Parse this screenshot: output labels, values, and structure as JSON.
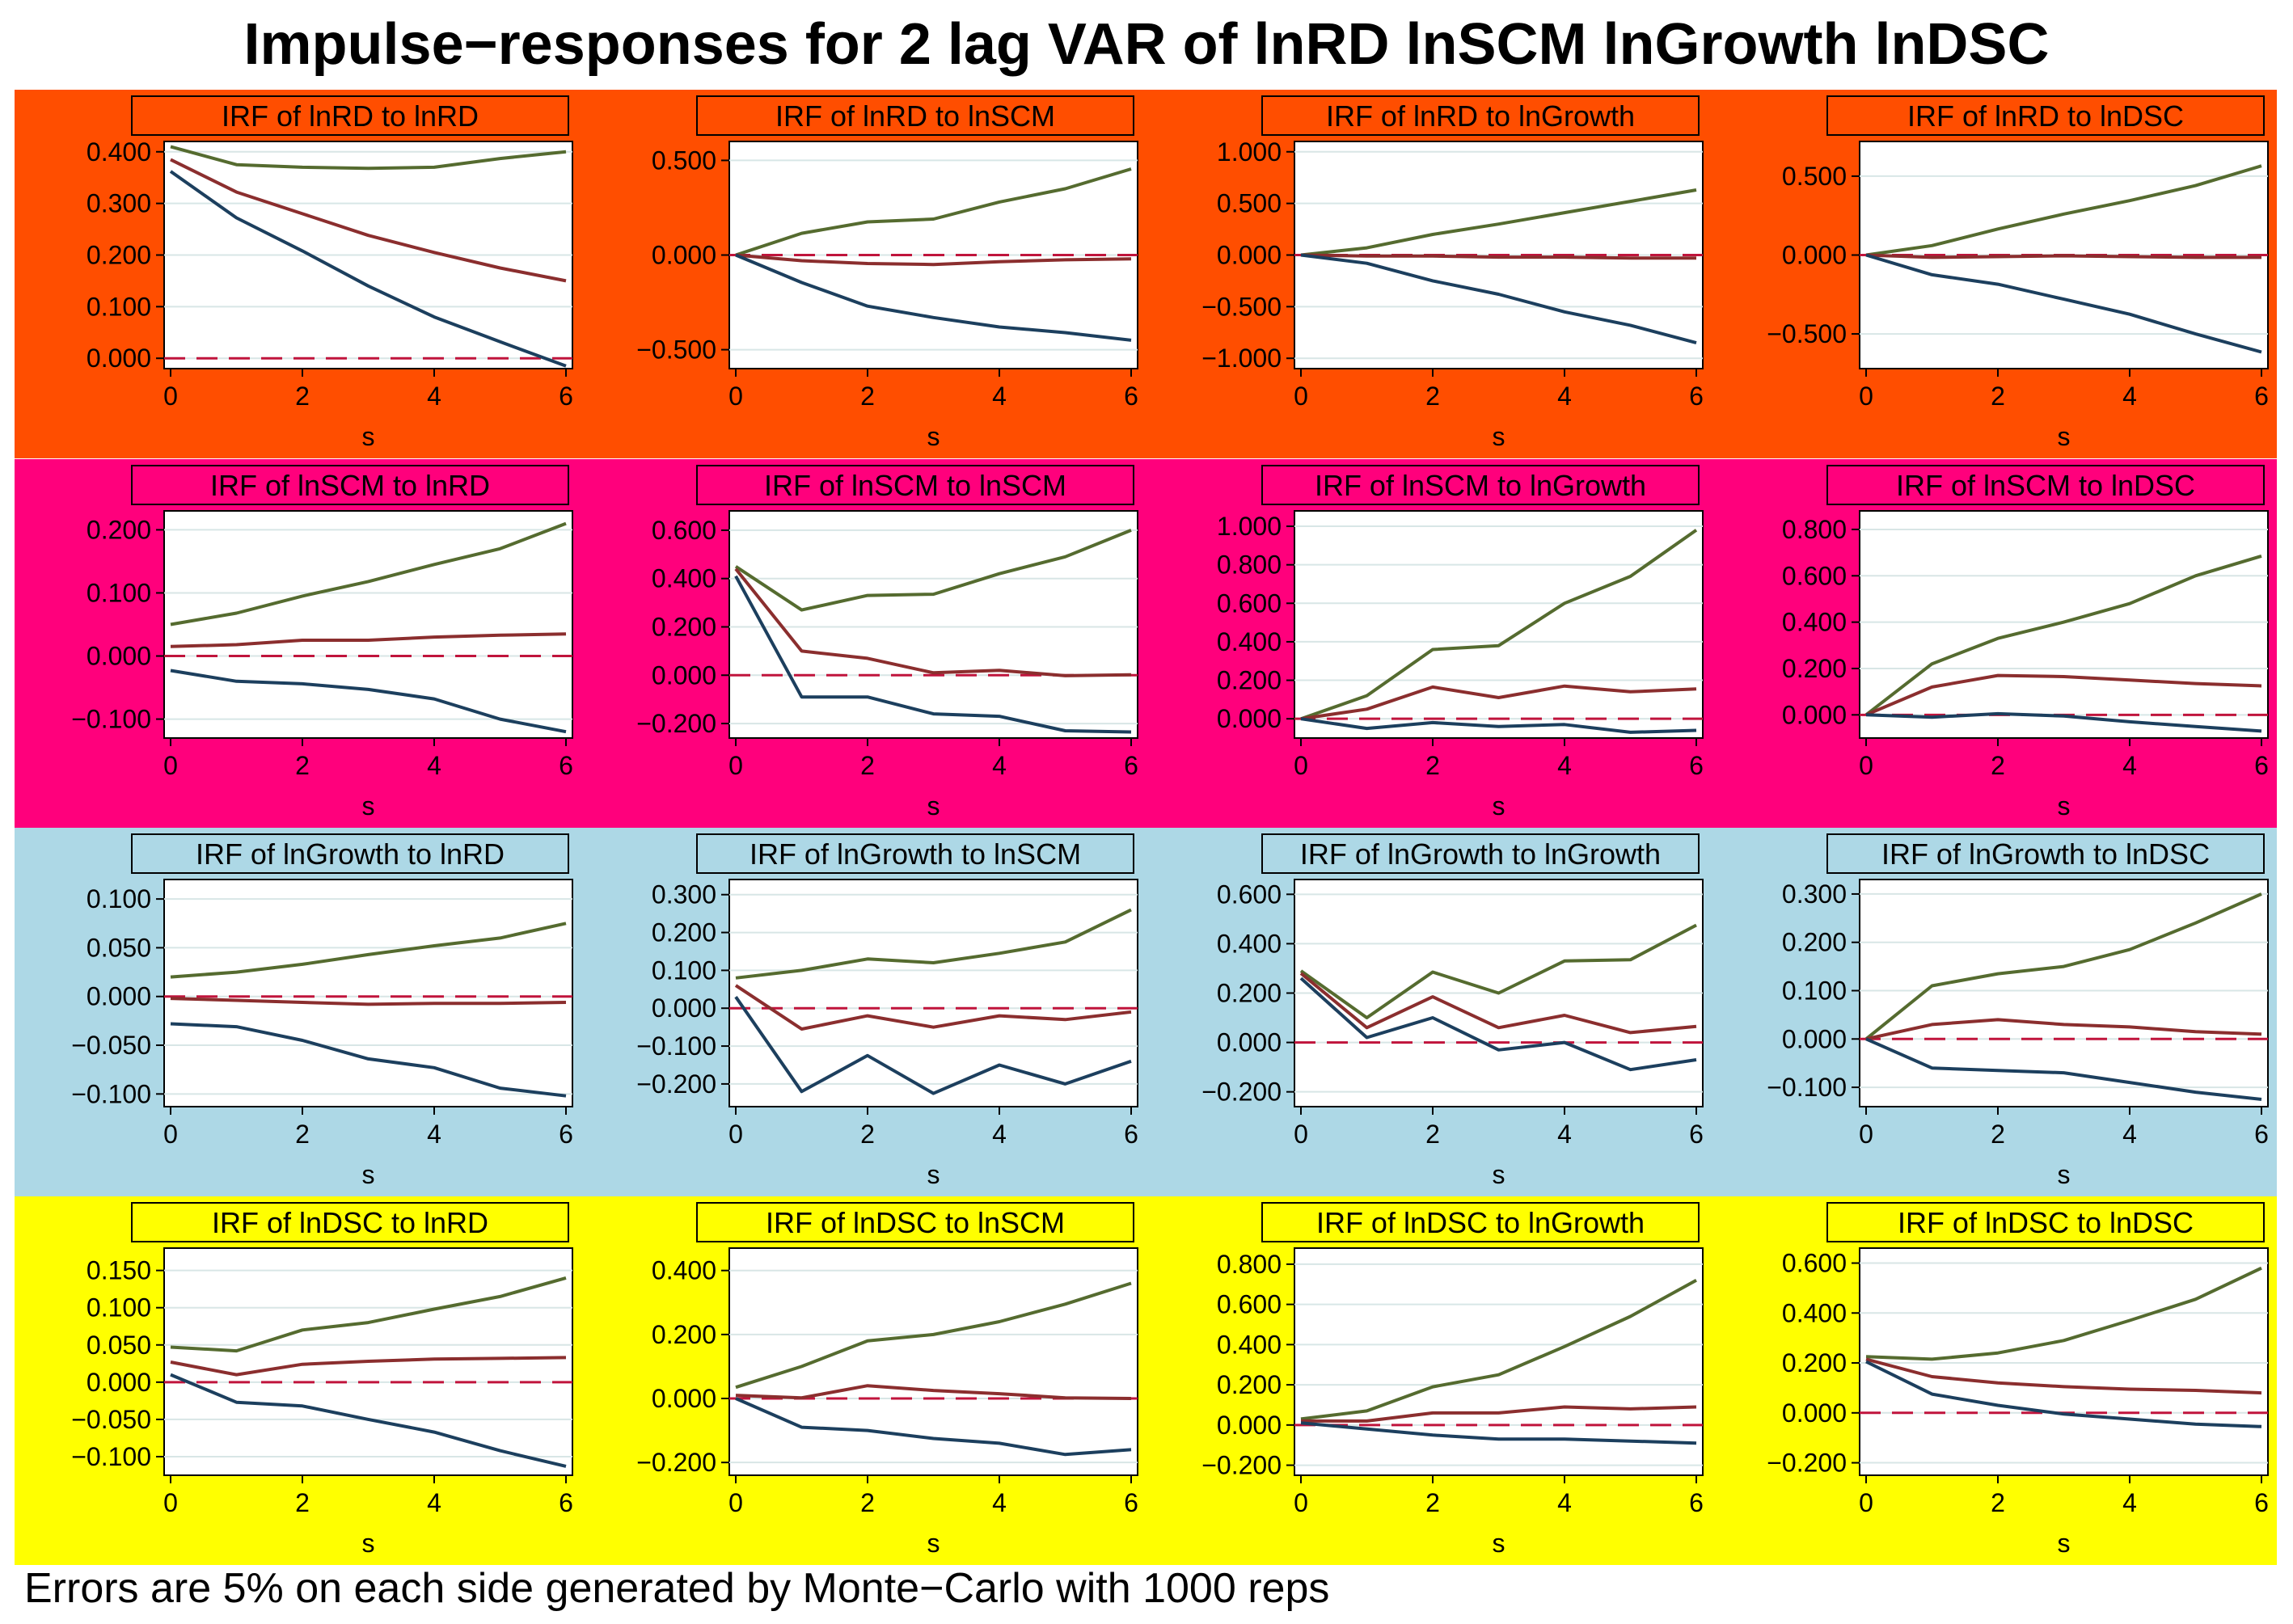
{
  "title": "Impulse−responses for 2 lag VAR of lnRD lnSCM lnGrowth lnDSC",
  "note": "Errors are 5% on each side generated by Monte−Carlo with 1000 reps",
  "colors": {
    "row_backgrounds": [
      "#ff4e00",
      "#ff007c",
      "#add8e6",
      "#ffff00"
    ],
    "upper": "#556b2f",
    "irf": "#8b2e2e",
    "lower": "#1c3f5e",
    "zero_line": "#c0143c",
    "grid": "#d8e6e6",
    "axis": "#000000",
    "title_box_text": "#000000"
  },
  "chart_data": [
    {
      "type": "line",
      "title": "IRF of lnRD to lnRD",
      "xlabel": "s",
      "x": [
        0,
        1,
        2,
        3,
        4,
        5,
        6
      ],
      "xticks": [
        0,
        2,
        4,
        6
      ],
      "ylim": [
        -0.02,
        0.42
      ],
      "yticks": [
        0,
        0.1,
        0.2,
        0.3,
        0.4
      ],
      "ytick_labels": [
        "0.000",
        "0.100",
        "0.200",
        "0.300",
        "0.400"
      ],
      "series": [
        {
          "name": "upper",
          "values": [
            0.41,
            0.375,
            0.37,
            0.368,
            0.37,
            0.387,
            0.4
          ]
        },
        {
          "name": "irf",
          "values": [
            0.385,
            0.322,
            0.28,
            0.238,
            0.205,
            0.175,
            0.15
          ]
        },
        {
          "name": "lower",
          "values": [
            0.362,
            0.272,
            0.208,
            0.14,
            0.08,
            0.032,
            -0.015
          ]
        }
      ]
    },
    {
      "type": "line",
      "title": "IRF of lnRD to lnSCM",
      "xlabel": "s",
      "x": [
        0,
        1,
        2,
        3,
        4,
        5,
        6
      ],
      "xticks": [
        0,
        2,
        4,
        6
      ],
      "ylim": [
        -0.6,
        0.6
      ],
      "yticks": [
        -0.5,
        0,
        0.5
      ],
      "ytick_labels": [
        "−0.500",
        "0.000",
        "0.500"
      ],
      "series": [
        {
          "name": "upper",
          "values": [
            0,
            0.115,
            0.175,
            0.19,
            0.28,
            0.35,
            0.455
          ]
        },
        {
          "name": "irf",
          "values": [
            0,
            -0.03,
            -0.045,
            -0.05,
            -0.035,
            -0.025,
            -0.02
          ]
        },
        {
          "name": "lower",
          "values": [
            0,
            -0.145,
            -0.27,
            -0.33,
            -0.38,
            -0.41,
            -0.45
          ]
        }
      ]
    },
    {
      "type": "line",
      "title": "IRF of lnRD to lnGrowth",
      "xlabel": "s",
      "x": [
        0,
        1,
        2,
        3,
        4,
        5,
        6
      ],
      "xticks": [
        0,
        2,
        4,
        6
      ],
      "ylim": [
        -1.1,
        1.1
      ],
      "yticks": [
        -1,
        -0.5,
        0,
        0.5,
        1
      ],
      "ytick_labels": [
        "−1.000",
        "−0.500",
        "0.000",
        "0.500",
        "1.000"
      ],
      "series": [
        {
          "name": "upper",
          "values": [
            0,
            0.07,
            0.2,
            0.3,
            0.41,
            0.52,
            0.63
          ]
        },
        {
          "name": "irf",
          "values": [
            0,
            -0.01,
            -0.01,
            -0.02,
            -0.02,
            -0.03,
            -0.03
          ]
        },
        {
          "name": "lower",
          "values": [
            0,
            -0.08,
            -0.25,
            -0.38,
            -0.55,
            -0.68,
            -0.85
          ]
        }
      ]
    },
    {
      "type": "line",
      "title": "IRF of lnRD to lnDSC",
      "xlabel": "s",
      "x": [
        0,
        1,
        2,
        3,
        4,
        5,
        6
      ],
      "xticks": [
        0,
        2,
        4,
        6
      ],
      "ylim": [
        -0.72,
        0.72
      ],
      "yticks": [
        -0.5,
        0,
        0.5
      ],
      "ytick_labels": [
        "−0.500",
        "0.000",
        "0.500"
      ],
      "series": [
        {
          "name": "upper",
          "values": [
            0,
            0.06,
            0.165,
            0.26,
            0.345,
            0.44,
            0.565
          ]
        },
        {
          "name": "irf",
          "values": [
            0,
            -0.015,
            -0.01,
            -0.005,
            -0.01,
            -0.015,
            -0.015
          ]
        },
        {
          "name": "lower",
          "values": [
            0,
            -0.125,
            -0.185,
            -0.28,
            -0.375,
            -0.5,
            -0.615
          ]
        }
      ]
    },
    {
      "type": "line",
      "title": "IRF of lnSCM to lnRD",
      "xlabel": "s",
      "x": [
        0,
        1,
        2,
        3,
        4,
        5,
        6
      ],
      "xticks": [
        0,
        2,
        4,
        6
      ],
      "ylim": [
        -0.13,
        0.23
      ],
      "yticks": [
        -0.1,
        0,
        0.1,
        0.2
      ],
      "ytick_labels": [
        "−0.100",
        "0.000",
        "0.100",
        "0.200"
      ],
      "series": [
        {
          "name": "upper",
          "values": [
            0.05,
            0.068,
            0.095,
            0.118,
            0.145,
            0.17,
            0.21
          ]
        },
        {
          "name": "irf",
          "values": [
            0.015,
            0.018,
            0.025,
            0.025,
            0.03,
            0.033,
            0.035
          ]
        },
        {
          "name": "lower",
          "values": [
            -0.023,
            -0.04,
            -0.044,
            -0.053,
            -0.068,
            -0.1,
            -0.12
          ]
        }
      ]
    },
    {
      "type": "line",
      "title": "IRF of lnSCM to lnSCM",
      "xlabel": "s",
      "x": [
        0,
        1,
        2,
        3,
        4,
        5,
        6
      ],
      "xticks": [
        0,
        2,
        4,
        6
      ],
      "ylim": [
        -0.26,
        0.68
      ],
      "yticks": [
        -0.2,
        0,
        0.2,
        0.4,
        0.6
      ],
      "ytick_labels": [
        "−0.200",
        "0.000",
        "0.200",
        "0.400",
        "0.600"
      ],
      "series": [
        {
          "name": "upper",
          "values": [
            0.45,
            0.27,
            0.33,
            0.335,
            0.42,
            0.49,
            0.6
          ]
        },
        {
          "name": "irf",
          "values": [
            0.44,
            0.1,
            0.07,
            0.01,
            0.02,
            -0.002,
            0.002
          ]
        },
        {
          "name": "lower",
          "values": [
            0.41,
            -0.09,
            -0.09,
            -0.16,
            -0.17,
            -0.23,
            -0.235
          ]
        }
      ]
    },
    {
      "type": "line",
      "title": "IRF of lnSCM to lnGrowth",
      "xlabel": "s",
      "x": [
        0,
        1,
        2,
        3,
        4,
        5,
        6
      ],
      "xticks": [
        0,
        2,
        4,
        6
      ],
      "ylim": [
        -0.1,
        1.08
      ],
      "yticks": [
        0,
        0.2,
        0.4,
        0.6,
        0.8,
        1.0
      ],
      "ytick_labels": [
        "0.000",
        "0.200",
        "0.400",
        "0.600",
        "0.800",
        "1.000"
      ],
      "series": [
        {
          "name": "upper",
          "values": [
            0,
            0.12,
            0.36,
            0.38,
            0.6,
            0.74,
            0.98
          ]
        },
        {
          "name": "irf",
          "values": [
            0,
            0.05,
            0.165,
            0.11,
            0.17,
            0.14,
            0.155
          ]
        },
        {
          "name": "lower",
          "values": [
            0,
            -0.05,
            -0.02,
            -0.04,
            -0.03,
            -0.07,
            -0.06
          ]
        }
      ]
    },
    {
      "type": "line",
      "title": "IRF of lnSCM to lnDSC",
      "xlabel": "s",
      "x": [
        0,
        1,
        2,
        3,
        4,
        5,
        6
      ],
      "xticks": [
        0,
        2,
        4,
        6
      ],
      "ylim": [
        -0.1,
        0.88
      ],
      "yticks": [
        0,
        0.2,
        0.4,
        0.6,
        0.8
      ],
      "ytick_labels": [
        "0.000",
        "0.200",
        "0.400",
        "0.600",
        "0.800"
      ],
      "series": [
        {
          "name": "upper",
          "values": [
            0,
            0.22,
            0.33,
            0.4,
            0.48,
            0.6,
            0.685
          ]
        },
        {
          "name": "irf",
          "values": [
            0,
            0.12,
            0.17,
            0.165,
            0.15,
            0.135,
            0.125
          ]
        },
        {
          "name": "lower",
          "values": [
            0,
            -0.01,
            0.005,
            -0.005,
            -0.03,
            -0.05,
            -0.07
          ]
        }
      ]
    },
    {
      "type": "line",
      "title": "IRF of lnGrowth to lnRD",
      "xlabel": "s",
      "x": [
        0,
        1,
        2,
        3,
        4,
        5,
        6
      ],
      "xticks": [
        0,
        2,
        4,
        6
      ],
      "ylim": [
        -0.113,
        0.12
      ],
      "yticks": [
        -0.1,
        -0.05,
        0,
        0.05,
        0.1
      ],
      "ytick_labels": [
        "−0.100",
        "−0.050",
        "0.000",
        "0.050",
        "0.100"
      ],
      "series": [
        {
          "name": "upper",
          "values": [
            0.02,
            0.025,
            0.033,
            0.043,
            0.052,
            0.06,
            0.075
          ]
        },
        {
          "name": "irf",
          "values": [
            -0.002,
            -0.004,
            -0.006,
            -0.008,
            -0.007,
            -0.007,
            -0.006
          ]
        },
        {
          "name": "lower",
          "values": [
            -0.028,
            -0.031,
            -0.045,
            -0.064,
            -0.073,
            -0.094,
            -0.102
          ]
        }
      ]
    },
    {
      "type": "line",
      "title": "IRF of lnGrowth to lnSCM",
      "xlabel": "s",
      "x": [
        0,
        1,
        2,
        3,
        4,
        5,
        6
      ],
      "xticks": [
        0,
        2,
        4,
        6
      ],
      "ylim": [
        -0.26,
        0.34
      ],
      "yticks": [
        -0.2,
        -0.1,
        0,
        0.1,
        0.2,
        0.3
      ],
      "ytick_labels": [
        "−0.200",
        "−0.100",
        "0.000",
        "0.100",
        "0.200",
        "0.300"
      ],
      "series": [
        {
          "name": "upper",
          "values": [
            0.08,
            0.1,
            0.13,
            0.12,
            0.145,
            0.175,
            0.26
          ]
        },
        {
          "name": "irf",
          "values": [
            0.06,
            -0.055,
            -0.02,
            -0.05,
            -0.02,
            -0.03,
            -0.01
          ]
        },
        {
          "name": "lower",
          "values": [
            0.03,
            -0.22,
            -0.125,
            -0.225,
            -0.15,
            -0.2,
            -0.14
          ]
        }
      ]
    },
    {
      "type": "line",
      "title": "IRF of lnGrowth to lnGrowth",
      "xlabel": "s",
      "x": [
        0,
        1,
        2,
        3,
        4,
        5,
        6
      ],
      "xticks": [
        0,
        2,
        4,
        6
      ],
      "ylim": [
        -0.26,
        0.66
      ],
      "yticks": [
        -0.2,
        0,
        0.2,
        0.4,
        0.6
      ],
      "ytick_labels": [
        "−0.200",
        "0.000",
        "0.200",
        "0.400",
        "0.600"
      ],
      "series": [
        {
          "name": "upper",
          "values": [
            0.29,
            0.1,
            0.285,
            0.2,
            0.33,
            0.335,
            0.475
          ]
        },
        {
          "name": "irf",
          "values": [
            0.28,
            0.06,
            0.185,
            0.06,
            0.11,
            0.04,
            0.065
          ]
        },
        {
          "name": "lower",
          "values": [
            0.26,
            0.02,
            0.1,
            -0.03,
            0.0,
            -0.11,
            -0.07
          ]
        }
      ]
    },
    {
      "type": "line",
      "title": "IRF of lnGrowth to lnDSC",
      "xlabel": "s",
      "x": [
        0,
        1,
        2,
        3,
        4,
        5,
        6
      ],
      "xticks": [
        0,
        2,
        4,
        6
      ],
      "ylim": [
        -0.14,
        0.33
      ],
      "yticks": [
        -0.1,
        0,
        0.1,
        0.2,
        0.3
      ],
      "ytick_labels": [
        "−0.100",
        "0.000",
        "0.100",
        "0.200",
        "0.300"
      ],
      "series": [
        {
          "name": "upper",
          "values": [
            0,
            0.11,
            0.135,
            0.15,
            0.185,
            0.24,
            0.3
          ]
        },
        {
          "name": "irf",
          "values": [
            0,
            0.03,
            0.04,
            0.03,
            0.025,
            0.015,
            0.01
          ]
        },
        {
          "name": "lower",
          "values": [
            0,
            -0.06,
            -0.065,
            -0.07,
            -0.09,
            -0.11,
            -0.125
          ]
        }
      ]
    },
    {
      "type": "line",
      "title": "IRF of lnDSC to lnRD",
      "xlabel": "s",
      "x": [
        0,
        1,
        2,
        3,
        4,
        5,
        6
      ],
      "xticks": [
        0,
        2,
        4,
        6
      ],
      "ylim": [
        -0.125,
        0.18
      ],
      "yticks": [
        -0.1,
        -0.05,
        0,
        0.05,
        0.1,
        0.15
      ],
      "ytick_labels": [
        "−0.100",
        "−0.050",
        "0.000",
        "0.050",
        "0.100",
        "0.150"
      ],
      "series": [
        {
          "name": "upper",
          "values": [
            0.047,
            0.042,
            0.07,
            0.08,
            0.098,
            0.115,
            0.14
          ]
        },
        {
          "name": "irf",
          "values": [
            0.027,
            0.01,
            0.024,
            0.028,
            0.031,
            0.032,
            0.033
          ]
        },
        {
          "name": "lower",
          "values": [
            0.01,
            -0.027,
            -0.032,
            -0.05,
            -0.067,
            -0.092,
            -0.113
          ]
        }
      ]
    },
    {
      "type": "line",
      "title": "IRF of lnDSC to lnSCM",
      "xlabel": "s",
      "x": [
        0,
        1,
        2,
        3,
        4,
        5,
        6
      ],
      "xticks": [
        0,
        2,
        4,
        6
      ],
      "ylim": [
        -0.24,
        0.47
      ],
      "yticks": [
        -0.2,
        0,
        0.2,
        0.4
      ],
      "ytick_labels": [
        "−0.200",
        "0.000",
        "0.200",
        "0.400"
      ],
      "series": [
        {
          "name": "upper",
          "values": [
            0.035,
            0.1,
            0.18,
            0.2,
            0.24,
            0.295,
            0.36
          ]
        },
        {
          "name": "irf",
          "values": [
            0.01,
            0.002,
            0.04,
            0.025,
            0.015,
            0.002,
            0.0
          ]
        },
        {
          "name": "lower",
          "values": [
            0,
            -0.09,
            -0.1,
            -0.125,
            -0.14,
            -0.175,
            -0.16
          ]
        }
      ]
    },
    {
      "type": "line",
      "title": "IRF of lnDSC to lnGrowth",
      "xlabel": "s",
      "x": [
        0,
        1,
        2,
        3,
        4,
        5,
        6
      ],
      "xticks": [
        0,
        2,
        4,
        6
      ],
      "ylim": [
        -0.25,
        0.88
      ],
      "yticks": [
        -0.2,
        0,
        0.2,
        0.4,
        0.6,
        0.8
      ],
      "ytick_labels": [
        "−0.200",
        "0.000",
        "0.200",
        "0.400",
        "0.600",
        "0.800"
      ],
      "series": [
        {
          "name": "upper",
          "values": [
            0.03,
            0.07,
            0.19,
            0.25,
            0.39,
            0.54,
            0.72
          ]
        },
        {
          "name": "irf",
          "values": [
            0.02,
            0.02,
            0.06,
            0.06,
            0.09,
            0.08,
            0.09
          ]
        },
        {
          "name": "lower",
          "values": [
            0.01,
            -0.02,
            -0.05,
            -0.07,
            -0.07,
            -0.08,
            -0.09
          ]
        }
      ]
    },
    {
      "type": "line",
      "title": "IRF of lnDSC to lnDSC",
      "xlabel": "s",
      "x": [
        0,
        1,
        2,
        3,
        4,
        5,
        6
      ],
      "xticks": [
        0,
        2,
        4,
        6
      ],
      "ylim": [
        -0.25,
        0.66
      ],
      "yticks": [
        -0.2,
        0,
        0.2,
        0.4,
        0.6
      ],
      "ytick_labels": [
        "−0.200",
        "0.000",
        "0.200",
        "0.400",
        "0.600"
      ],
      "series": [
        {
          "name": "upper",
          "values": [
            0.225,
            0.215,
            0.24,
            0.29,
            0.37,
            0.455,
            0.58
          ]
        },
        {
          "name": "irf",
          "values": [
            0.215,
            0.145,
            0.12,
            0.105,
            0.095,
            0.09,
            0.08
          ]
        },
        {
          "name": "lower",
          "values": [
            0.205,
            0.075,
            0.03,
            -0.005,
            -0.025,
            -0.045,
            -0.055
          ]
        }
      ]
    }
  ]
}
